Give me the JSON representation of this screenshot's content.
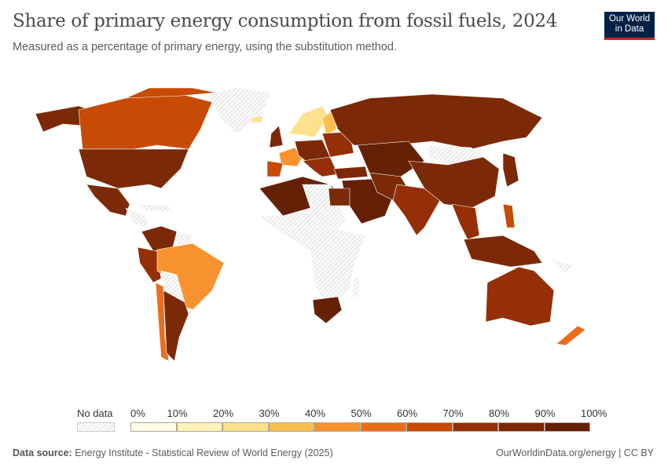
{
  "header": {
    "title": "Share of primary energy consumption from fossil fuels, 2024",
    "subtitle": "Measured as a percentage of primary energy, using the substitution method.",
    "logo_line1": "Our World",
    "logo_line2": "in Data"
  },
  "legend": {
    "no_data_label": "No data",
    "ticks": [
      "0%",
      "10%",
      "20%",
      "30%",
      "40%",
      "50%",
      "60%",
      "70%",
      "80%",
      "90%",
      "100%"
    ],
    "colors": [
      "#fffbe4",
      "#fef3b9",
      "#fde18d",
      "#fcbf4f",
      "#f8922e",
      "#ea6d1c",
      "#c84b05",
      "#952f07",
      "#7b2907",
      "#652105"
    ],
    "no_data_color": "#eeeeee"
  },
  "footer": {
    "source_label": "Data source:",
    "source": "Energy Institute - Statistical Review of World Energy (2025)",
    "credit": "OurWorldinData.org/energy | CC BY"
  }
}
